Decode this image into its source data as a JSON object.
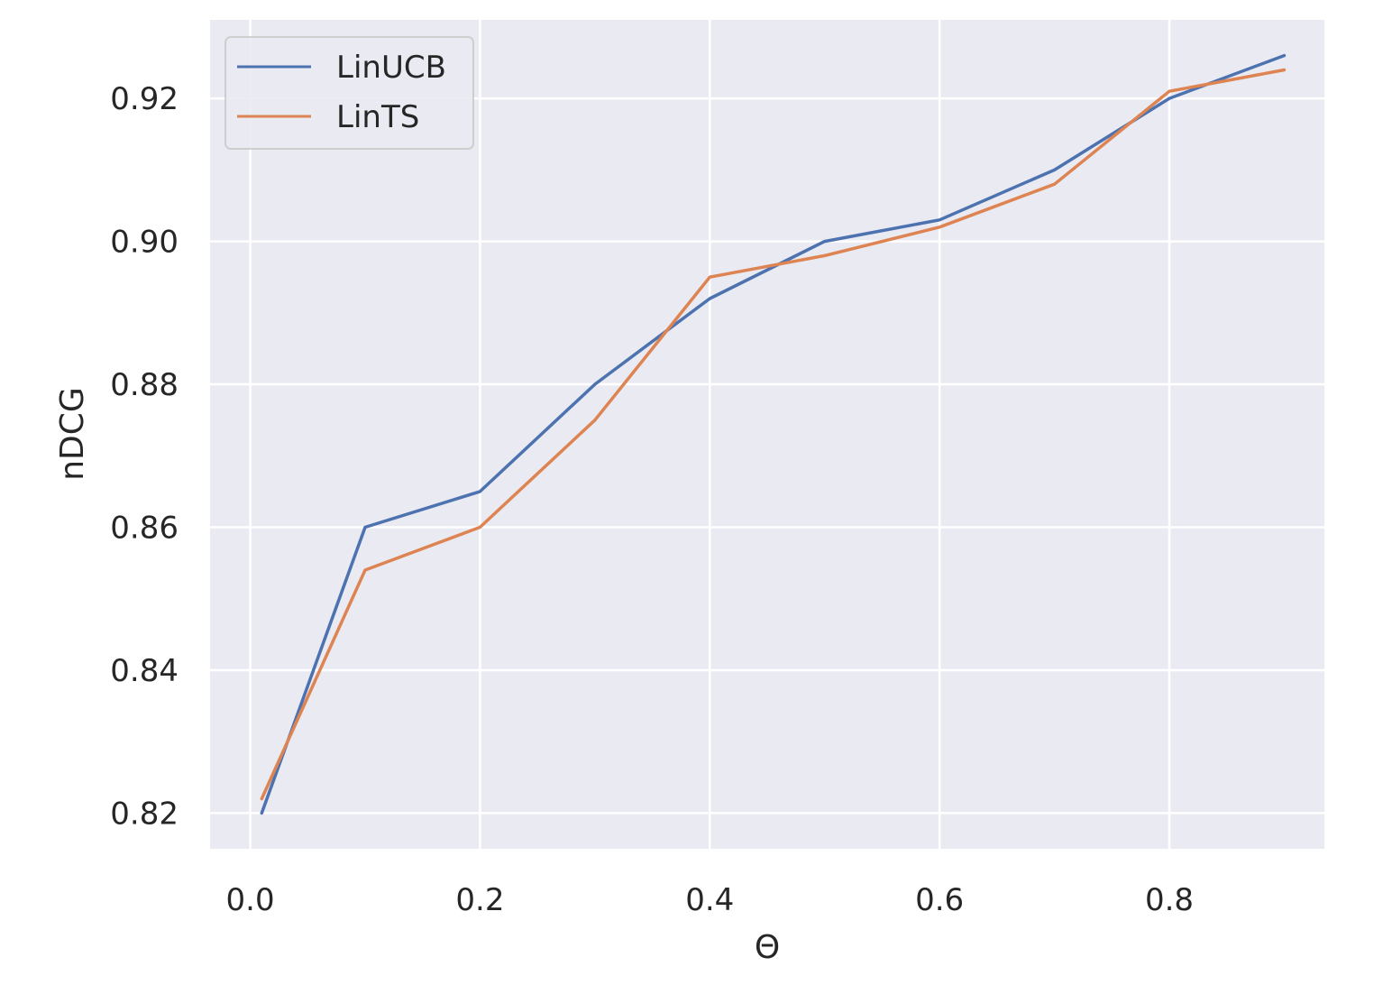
{
  "chart_data": {
    "type": "line",
    "xlabel": "Θ",
    "ylabel": "nDCG",
    "xlim": [
      -0.035,
      0.935
    ],
    "ylim": [
      0.815,
      0.931
    ],
    "xticks": [
      0.0,
      0.2,
      0.4,
      0.6,
      0.8
    ],
    "xtick_labels": [
      "0.0",
      "0.2",
      "0.4",
      "0.6",
      "0.8"
    ],
    "yticks": [
      0.82,
      0.84,
      0.86,
      0.88,
      0.9,
      0.92
    ],
    "ytick_labels": [
      "0.82",
      "0.84",
      "0.86",
      "0.88",
      "0.90",
      "0.92"
    ],
    "grid": true,
    "legend_position": "top-left",
    "x": [
      0.01,
      0.1,
      0.2,
      0.3,
      0.4,
      0.5,
      0.6,
      0.7,
      0.8,
      0.9
    ],
    "series": [
      {
        "name": "LinUCB",
        "color": "#4c72b0",
        "values": [
          0.82,
          0.86,
          0.865,
          0.88,
          0.892,
          0.9,
          0.903,
          0.91,
          0.92,
          0.926
        ]
      },
      {
        "name": "LinTS",
        "color": "#dd8452",
        "values": [
          0.822,
          0.854,
          0.86,
          0.875,
          0.895,
          0.898,
          0.902,
          0.908,
          0.921,
          0.924
        ]
      }
    ]
  }
}
